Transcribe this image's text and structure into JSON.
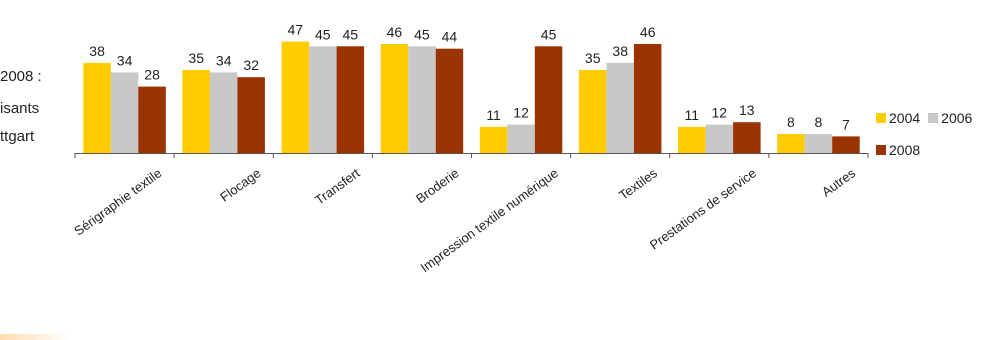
{
  "side_text": [
    "2008 :",
    "isants",
    "ttgart"
  ],
  "chart_data": {
    "type": "bar",
    "categories": [
      "Sérigraphie textile",
      "Flocage",
      "Transfert",
      "Broderie",
      "Impression textile numérique",
      "Textiles",
      "Prestations de service",
      "Autres"
    ],
    "series": [
      {
        "name": "2004",
        "color": "#FFCC00",
        "values": [
          38,
          35,
          47,
          46,
          11,
          35,
          11,
          8
        ]
      },
      {
        "name": "2006",
        "color": "#C8C8C8",
        "values": [
          34,
          34,
          45,
          45,
          12,
          38,
          12,
          8
        ]
      },
      {
        "name": "2008",
        "color": "#9A3300",
        "values": [
          28,
          32,
          45,
          44,
          45,
          46,
          13,
          7
        ]
      }
    ],
    "ylim": [
      0,
      50
    ],
    "show_y_axis": false,
    "grid": false,
    "data_labels": true,
    "legend_position": "right"
  }
}
